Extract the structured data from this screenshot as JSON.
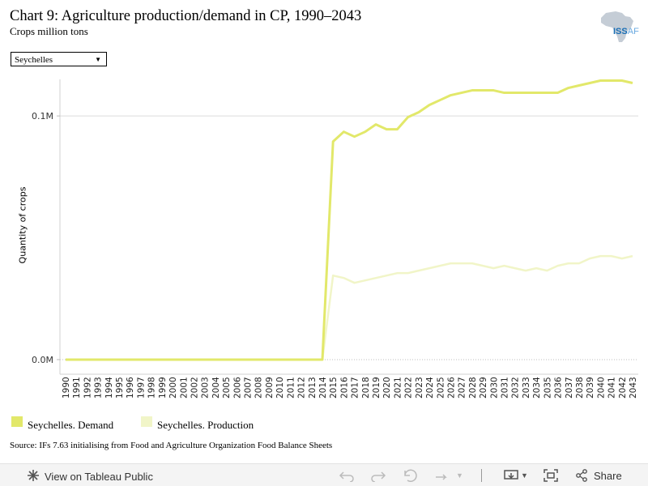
{
  "header": {
    "title": "Chart 9: Agriculture production/demand in CP, 1990–2043",
    "subtitle": "Crops million tons",
    "logo_text_main": "ISS",
    "logo_text_light": "AF"
  },
  "filter": {
    "selected": "Seychelles"
  },
  "chart_data": {
    "type": "line",
    "ylabel": "Quantity of crops",
    "xlabel": "",
    "y_tick_labels": [
      "0.0M",
      "0.1M"
    ],
    "y_ticks": [
      0,
      0.1
    ],
    "ylim": [
      -0.006,
      0.115
    ],
    "x": [
      1990,
      1991,
      1992,
      1993,
      1994,
      1995,
      1996,
      1997,
      1998,
      1999,
      2000,
      2001,
      2002,
      2003,
      2004,
      2005,
      2006,
      2007,
      2008,
      2009,
      2010,
      2011,
      2012,
      2013,
      2014,
      2015,
      2016,
      2017,
      2018,
      2019,
      2020,
      2021,
      2022,
      2023,
      2024,
      2025,
      2026,
      2027,
      2028,
      2029,
      2030,
      2031,
      2032,
      2033,
      2034,
      2035,
      2036,
      2037,
      2038,
      2039,
      2040,
      2041,
      2042,
      2043
    ],
    "grid": "horizontal",
    "legend_position": "bottom",
    "series": [
      {
        "name": "Seychelles. Demand",
        "color": "#e2e86a",
        "values": [
          0,
          0,
          0,
          0,
          0,
          0,
          0,
          0,
          0,
          0,
          0,
          0,
          0,
          0,
          0,
          0,
          0,
          0,
          0,
          0,
          0,
          0,
          0,
          0,
          0,
          0.0895,
          0.0935,
          0.0915,
          0.0935,
          0.0965,
          0.0945,
          0.0945,
          0.0995,
          0.1015,
          0.1045,
          0.1065,
          0.1085,
          0.1095,
          0.1105,
          0.1105,
          0.1105,
          0.1095,
          0.1095,
          0.1095,
          0.1095,
          0.1095,
          0.1095,
          0.1115,
          0.1125,
          0.1135,
          0.1145,
          0.1145,
          0.1145,
          0.1135
        ]
      },
      {
        "name": "Seychelles. Production",
        "color": "#f1f5c8",
        "values": [
          0,
          0,
          0,
          0,
          0,
          0,
          0,
          0,
          0,
          0,
          0,
          0,
          0,
          0,
          0,
          0,
          0,
          0,
          0,
          0,
          0,
          0,
          0,
          0,
          0,
          0.0345,
          0.0335,
          0.0315,
          0.0325,
          0.0335,
          0.0345,
          0.0355,
          0.0355,
          0.0365,
          0.0375,
          0.0385,
          0.0395,
          0.0395,
          0.0395,
          0.0385,
          0.0375,
          0.0385,
          0.0375,
          0.0365,
          0.0375,
          0.0365,
          0.0385,
          0.0395,
          0.0395,
          0.0415,
          0.0425,
          0.0425,
          0.0415,
          0.0425
        ]
      }
    ]
  },
  "source": "Source: IFs 7.63 initialising from Food and Agriculture Organization Food Balance Sheets",
  "toolbar": {
    "view_label": "View on Tableau Public",
    "share_label": "Share"
  }
}
